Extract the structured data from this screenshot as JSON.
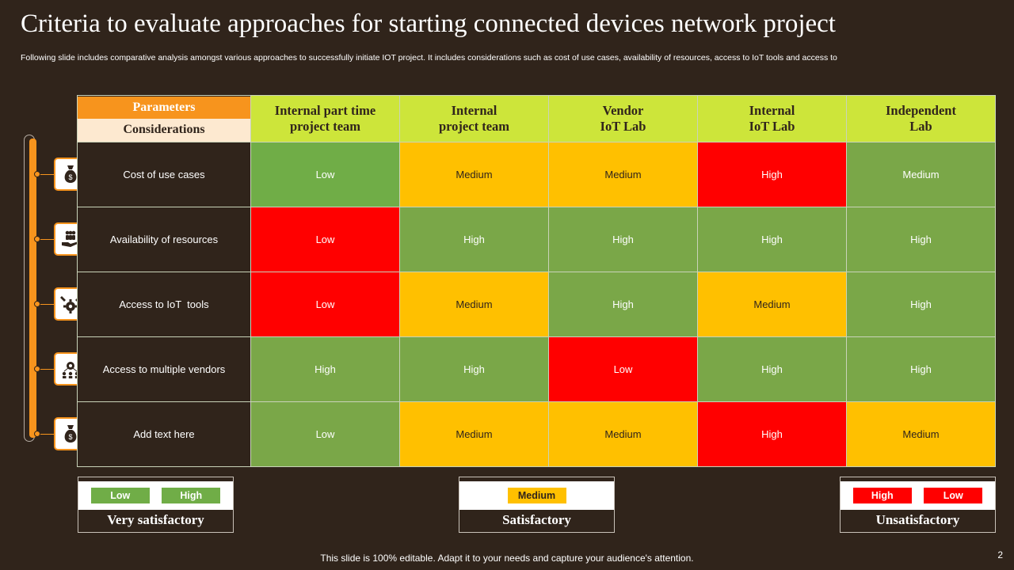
{
  "title": "Criteria to evaluate approaches for starting connected devices network project",
  "subtitle": "Following slide includes comparative analysis amongst various approaches to successfully initiate IOT project. It includes considerations such as cost of use cases, availability of resources, access to IoT tools and access to",
  "table": {
    "corner_top": "Parameters",
    "corner_bottom": "Considerations",
    "columns": [
      {
        "line1": "Internal part time",
        "line2": "project team"
      },
      {
        "line1": "Internal",
        "line2": "project team"
      },
      {
        "line1": "Vendor",
        "line2": "IoT Lab"
      },
      {
        "line1": "Internal",
        "line2": "IoT Lab"
      },
      {
        "line1": "Independent",
        "line2": "Lab"
      }
    ],
    "rows": [
      {
        "label": "Cost of use cases",
        "icon": "money-bag-icon",
        "cells": [
          "Low",
          "Medium",
          "Medium",
          "High",
          "Medium"
        ]
      },
      {
        "label": "Availability of resources",
        "icon": "hand-with-people-icon",
        "cells": [
          "Low",
          "High",
          "High",
          "High",
          "High"
        ]
      },
      {
        "label": "Access to IoT  tools",
        "icon": "tools-gear-icon",
        "cells": [
          "Low",
          "Medium",
          "High",
          "Medium",
          "High"
        ]
      },
      {
        "label": "Access to multiple vendors",
        "icon": "vendors-network-icon",
        "cells": [
          "High",
          "High",
          "Low",
          "High",
          "High"
        ]
      },
      {
        "label": "Add text here",
        "icon": "money-bag-icon",
        "cells": [
          "Low",
          "Medium",
          "Medium",
          "High",
          "Medium"
        ]
      }
    ]
  },
  "legend": [
    {
      "chips": [
        "Low",
        "High"
      ],
      "label": "Very satisfactory"
    },
    {
      "chips": [
        "Medium"
      ],
      "label": "Satisfactory"
    },
    {
      "chips": [
        "High",
        "Low"
      ],
      "label": "Unsatisfactory"
    }
  ],
  "colors": {
    "background": "#30241b",
    "accent_orange": "#f7941d",
    "header_green": "#cde53a",
    "good_green": "#70ad47",
    "medium_yellow": "#ffc000",
    "bad_red": "#ff0000"
  },
  "footer": "This slide is 100% editable. Adapt it to your needs and capture your audience's attention.",
  "page_number": "2"
}
